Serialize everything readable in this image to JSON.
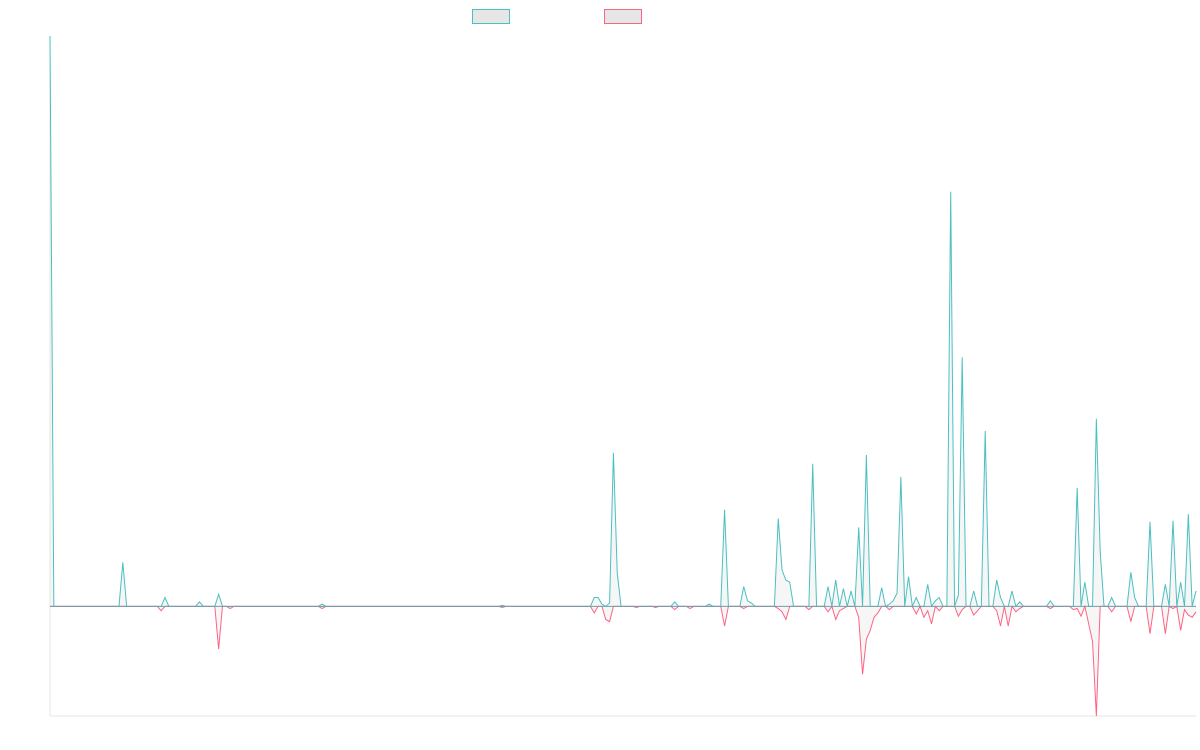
{
  "chart_data": {
    "type": "line",
    "title": "",
    "xlabel": "",
    "ylabel": "",
    "legend_position": "top-center",
    "grid": false,
    "axes_visible": true,
    "tick_labels_visible": false,
    "ylim": [
      -100,
      520
    ],
    "x_count": 291,
    "series": [
      {
        "name": "",
        "color": "#4bc0c0",
        "fill": "#e6e6e6",
        "sign": "positive",
        "points": [
          [
            0,
            520
          ],
          [
            1,
            0
          ],
          [
            18,
            0
          ],
          [
            19,
            40
          ],
          [
            20,
            0
          ],
          [
            29,
            0
          ],
          [
            30,
            8
          ],
          [
            31,
            0
          ],
          [
            38,
            0
          ],
          [
            39,
            4
          ],
          [
            40,
            0
          ],
          [
            43,
            0
          ],
          [
            44,
            11
          ],
          [
            45,
            0
          ],
          [
            70,
            0
          ],
          [
            71,
            2
          ],
          [
            72,
            0
          ],
          [
            117,
            0
          ],
          [
            118,
            1
          ],
          [
            119,
            0
          ],
          [
            141,
            0
          ],
          [
            142,
            8
          ],
          [
            143,
            8
          ],
          [
            144,
            2
          ],
          [
            145,
            0
          ],
          [
            146,
            3
          ],
          [
            147,
            140
          ],
          [
            148,
            30
          ],
          [
            149,
            0
          ],
          [
            162,
            0
          ],
          [
            163,
            4
          ],
          [
            164,
            0
          ],
          [
            171,
            0
          ],
          [
            172,
            2
          ],
          [
            173,
            0
          ],
          [
            175,
            0
          ],
          [
            176,
            88
          ],
          [
            177,
            0
          ],
          [
            180,
            0
          ],
          [
            181,
            18
          ],
          [
            182,
            5
          ],
          [
            183,
            3
          ],
          [
            184,
            0
          ],
          [
            189,
            0
          ],
          [
            190,
            80
          ],
          [
            191,
            33
          ],
          [
            192,
            24
          ],
          [
            193,
            22
          ],
          [
            194,
            0
          ],
          [
            198,
            0
          ],
          [
            199,
            130
          ],
          [
            200,
            0
          ],
          [
            202,
            0
          ],
          [
            203,
            18
          ],
          [
            204,
            0
          ],
          [
            205,
            24
          ],
          [
            206,
            0
          ],
          [
            207,
            16
          ],
          [
            208,
            0
          ],
          [
            209,
            14
          ],
          [
            210,
            0
          ],
          [
            211,
            72
          ],
          [
            212,
            0
          ],
          [
            213,
            138
          ],
          [
            214,
            0
          ],
          [
            216,
            0
          ],
          [
            217,
            17
          ],
          [
            218,
            0
          ],
          [
            219,
            2
          ],
          [
            220,
            5
          ],
          [
            221,
            12
          ],
          [
            222,
            118
          ],
          [
            223,
            0
          ],
          [
            224,
            27
          ],
          [
            225,
            0
          ],
          [
            226,
            8
          ],
          [
            227,
            0
          ],
          [
            228,
            0
          ],
          [
            229,
            20
          ],
          [
            230,
            0
          ],
          [
            231,
            5
          ],
          [
            232,
            8
          ],
          [
            233,
            0
          ],
          [
            234,
            0
          ],
          [
            235,
            378
          ],
          [
            236,
            0
          ],
          [
            237,
            10
          ],
          [
            238,
            227
          ],
          [
            239,
            0
          ],
          [
            240,
            0
          ],
          [
            241,
            14
          ],
          [
            242,
            0
          ],
          [
            243,
            0
          ],
          [
            244,
            160
          ],
          [
            245,
            0
          ],
          [
            246,
            0
          ],
          [
            247,
            24
          ],
          [
            248,
            8
          ],
          [
            249,
            0
          ],
          [
            250,
            0
          ],
          [
            251,
            14
          ],
          [
            252,
            0
          ],
          [
            253,
            4
          ],
          [
            254,
            0
          ],
          [
            260,
            0
          ],
          [
            261,
            5
          ],
          [
            262,
            0
          ],
          [
            267,
            0
          ],
          [
            268,
            108
          ],
          [
            269,
            0
          ],
          [
            270,
            22
          ],
          [
            271,
            0
          ],
          [
            272,
            0
          ],
          [
            273,
            171
          ],
          [
            274,
            50
          ],
          [
            275,
            0
          ],
          [
            276,
            0
          ],
          [
            277,
            8
          ],
          [
            278,
            0
          ],
          [
            281,
            0
          ],
          [
            282,
            31
          ],
          [
            283,
            8
          ],
          [
            284,
            0
          ],
          [
            286,
            0
          ],
          [
            287,
            77
          ],
          [
            288,
            0
          ],
          [
            290,
            0
          ],
          [
            291,
            20
          ],
          [
            292,
            0
          ],
          [
            293,
            78
          ],
          [
            294,
            0
          ],
          [
            295,
            22
          ],
          [
            296,
            0
          ],
          [
            297,
            84
          ],
          [
            298,
            0
          ],
          [
            299,
            14
          ]
        ]
      },
      {
        "name": "",
        "color": "#ff6384",
        "fill": "#e6e6e6",
        "sign": "negative",
        "points": [
          [
            0,
            0
          ],
          [
            28,
            0
          ],
          [
            29,
            -4
          ],
          [
            30,
            0
          ],
          [
            43,
            0
          ],
          [
            44,
            -39
          ],
          [
            45,
            0
          ],
          [
            46,
            0
          ],
          [
            47,
            -2
          ],
          [
            48,
            0
          ],
          [
            70,
            0
          ],
          [
            71,
            -2
          ],
          [
            72,
            0
          ],
          [
            117,
            0
          ],
          [
            118,
            -1
          ],
          [
            119,
            0
          ],
          [
            141,
            0
          ],
          [
            142,
            -6
          ],
          [
            143,
            0
          ],
          [
            144,
            0
          ],
          [
            145,
            -12
          ],
          [
            146,
            -14
          ],
          [
            147,
            0
          ],
          [
            152,
            0
          ],
          [
            153,
            -1
          ],
          [
            154,
            0
          ],
          [
            157,
            0
          ],
          [
            158,
            -1
          ],
          [
            159,
            0
          ],
          [
            162,
            0
          ],
          [
            163,
            -3
          ],
          [
            164,
            0
          ],
          [
            166,
            0
          ],
          [
            167,
            -2
          ],
          [
            168,
            0
          ],
          [
            175,
            0
          ],
          [
            176,
            -18
          ],
          [
            177,
            0
          ],
          [
            180,
            0
          ],
          [
            181,
            -2
          ],
          [
            182,
            0
          ],
          [
            189,
            0
          ],
          [
            190,
            -2
          ],
          [
            191,
            -5
          ],
          [
            192,
            -12
          ],
          [
            193,
            0
          ],
          [
            197,
            0
          ],
          [
            198,
            -3
          ],
          [
            199,
            0
          ],
          [
            202,
            0
          ],
          [
            203,
            -5
          ],
          [
            204,
            0
          ],
          [
            205,
            -12
          ],
          [
            206,
            -4
          ],
          [
            207,
            -2
          ],
          [
            208,
            0
          ],
          [
            210,
            0
          ],
          [
            211,
            -10
          ],
          [
            212,
            -62
          ],
          [
            213,
            -30
          ],
          [
            214,
            -22
          ],
          [
            215,
            -10
          ],
          [
            216,
            -6
          ],
          [
            217,
            0
          ],
          [
            218,
            0
          ],
          [
            219,
            -3
          ],
          [
            220,
            0
          ],
          [
            225,
            0
          ],
          [
            226,
            -7
          ],
          [
            227,
            0
          ],
          [
            228,
            -10
          ],
          [
            229,
            -4
          ],
          [
            230,
            -16
          ],
          [
            231,
            0
          ],
          [
            232,
            -4
          ],
          [
            233,
            0
          ],
          [
            236,
            0
          ],
          [
            237,
            -9
          ],
          [
            238,
            -3
          ],
          [
            239,
            0
          ],
          [
            240,
            0
          ],
          [
            241,
            -8
          ],
          [
            242,
            -4
          ],
          [
            243,
            0
          ],
          [
            246,
            0
          ],
          [
            247,
            -4
          ],
          [
            248,
            -18
          ],
          [
            249,
            0
          ],
          [
            250,
            -18
          ],
          [
            251,
            0
          ],
          [
            252,
            -5
          ],
          [
            253,
            -2
          ],
          [
            254,
            0
          ],
          [
            260,
            0
          ],
          [
            261,
            -2
          ],
          [
            262,
            0
          ],
          [
            266,
            0
          ],
          [
            267,
            -3
          ],
          [
            268,
            -2
          ],
          [
            269,
            -9
          ],
          [
            270,
            0
          ],
          [
            272,
            -32
          ],
          [
            273,
            -100
          ],
          [
            274,
            0
          ],
          [
            276,
            0
          ],
          [
            277,
            -5
          ],
          [
            278,
            0
          ],
          [
            281,
            0
          ],
          [
            282,
            -14
          ],
          [
            283,
            0
          ],
          [
            286,
            0
          ],
          [
            287,
            -25
          ],
          [
            288,
            0
          ],
          [
            290,
            0
          ],
          [
            291,
            -25
          ],
          [
            292,
            0
          ],
          [
            293,
            -2
          ],
          [
            294,
            0
          ],
          [
            295,
            -22
          ],
          [
            296,
            -3
          ],
          [
            297,
            -8
          ],
          [
            298,
            -10
          ],
          [
            299,
            -5
          ]
        ]
      }
    ]
  }
}
